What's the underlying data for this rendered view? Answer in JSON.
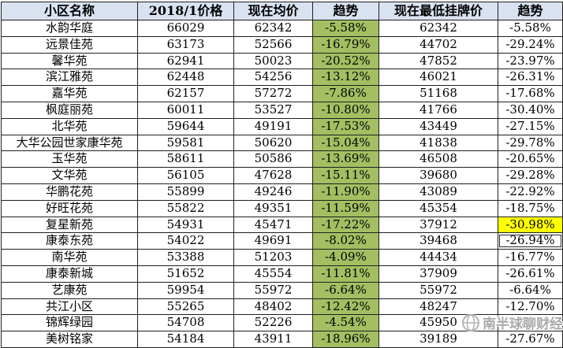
{
  "table": {
    "headers": [
      "小区名称",
      "2018/1价格",
      "现在均价",
      "趋势",
      "现在最低挂牌价",
      "趋势"
    ],
    "rows": [
      [
        "水韵华庭",
        "66029",
        "62342",
        "-5.58%",
        "62342",
        "-5.58%"
      ],
      [
        "远景佳苑",
        "63173",
        "52566",
        "-16.79%",
        "44702",
        "-29.24%"
      ],
      [
        "馨华苑",
        "62941",
        "50023",
        "-20.52%",
        "47852",
        "-23.97%"
      ],
      [
        "滨江雅苑",
        "62448",
        "54256",
        "-13.12%",
        "46021",
        "-26.31%"
      ],
      [
        "嘉华苑",
        "62157",
        "57272",
        "-7.86%",
        "51168",
        "-17.68%"
      ],
      [
        "枫庭丽苑",
        "60011",
        "53527",
        "-10.80%",
        "41766",
        "-30.40%"
      ],
      [
        "北华苑",
        "59644",
        "49191",
        "-17.53%",
        "43449",
        "-27.15%"
      ],
      [
        "大华公园世家康华苑",
        "59581",
        "50620",
        "-15.04%",
        "41838",
        "-29.78%"
      ],
      [
        "玉华苑",
        "58611",
        "50586",
        "-13.69%",
        "46508",
        "-20.65%"
      ],
      [
        "文华苑",
        "56105",
        "47628",
        "-15.11%",
        "39680",
        "-29.28%"
      ],
      [
        "华鹏花苑",
        "55899",
        "49246",
        "-11.90%",
        "43089",
        "-22.92%"
      ],
      [
        "好旺花苑",
        "55822",
        "49351",
        "-11.59%",
        "45354",
        "-18.75%"
      ],
      [
        "复星新苑",
        "54931",
        "45471",
        "-17.22%",
        "37912",
        "-30.98%"
      ],
      [
        "康泰东苑",
        "54022",
        "49691",
        "-8.02%",
        "39468",
        "-26.94%"
      ],
      [
        "南华苑",
        "53388",
        "51203",
        "-4.09%",
        "44434",
        "-16.77%"
      ],
      [
        "康泰新城",
        "51652",
        "45554",
        "-11.81%",
        "37909",
        "-26.61%"
      ],
      [
        "艺康苑",
        "59954",
        "55972",
        "-6.64%",
        "55972",
        "-6.64%"
      ],
      [
        "共江小区",
        "55265",
        "48402",
        "-12.42%",
        "48247",
        "-12.70%"
      ],
      [
        "锦辉绿园",
        "54708",
        "52226",
        "-4.54%",
        "45950",
        "-16.01%"
      ],
      [
        "美树铭家",
        "54184",
        "43911",
        "-18.96%",
        "39189",
        "-27.67%"
      ]
    ],
    "green_col_index": 3,
    "yellow_cell": {
      "row": 12,
      "col": 5
    },
    "selected_cell": {
      "row": 13,
      "col": 5
    }
  },
  "watermark": {
    "text": "南半球聊财经",
    "icon": "globe-icon"
  },
  "colors": {
    "header_bg": "#D9E2F1",
    "trend_column_bg": "#A3BF62",
    "highlight_bg": "#FFFF00",
    "grid": "#1f1f1f",
    "watermark_gray": "#a9a9a9"
  }
}
